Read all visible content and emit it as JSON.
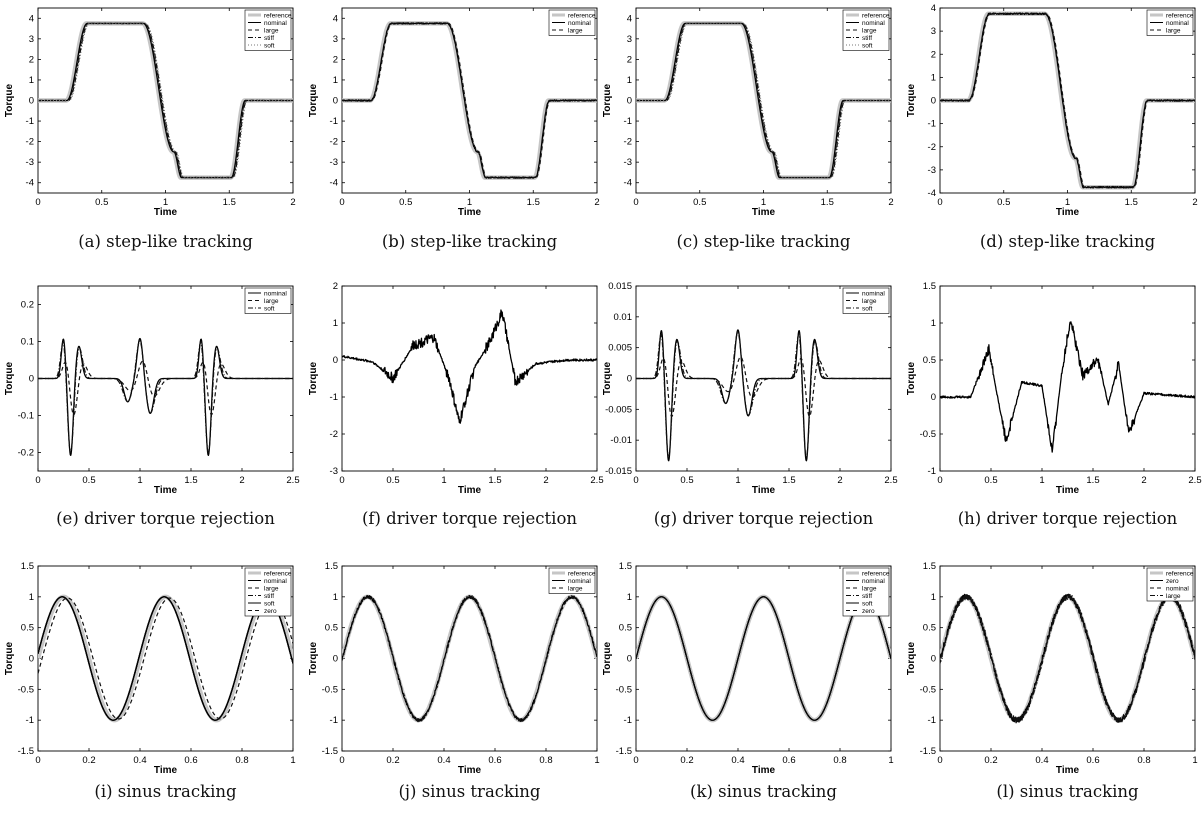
{
  "chart_data": [
    {
      "id": "a",
      "type": "line",
      "caption": "(a) step-like tracking",
      "signal": "step",
      "xlabel": "Time",
      "ylabel": "Torque",
      "xlim": [
        0,
        2
      ],
      "ylim": [
        -4.5,
        4.5
      ],
      "xticks": [
        "0",
        "0.5",
        "1",
        "1.5",
        "2"
      ],
      "yticks": [
        "4",
        "3",
        "2",
        "1",
        "0",
        "-1",
        "-2",
        "-3",
        "-4"
      ],
      "series": [
        {
          "name": "reference",
          "style": "gray"
        },
        {
          "name": "nominal",
          "style": "solid"
        },
        {
          "name": "large",
          "style": "dashed"
        },
        {
          "name": "stiff",
          "style": "dashdot"
        },
        {
          "name": "soft",
          "style": "dotted"
        }
      ],
      "step_profile": {
        "t": [
          0,
          0.22,
          0.38,
          0.82,
          1.06,
          1.12,
          1.51,
          1.62,
          1.7,
          2
        ],
        "y": [
          0,
          0,
          3.75,
          3.75,
          -2.5,
          -3.75,
          -3.75,
          0,
          0,
          0
        ]
      }
    },
    {
      "id": "b",
      "type": "line",
      "caption": "(b) step-like tracking",
      "signal": "step",
      "xlabel": "Time",
      "ylabel": "Torque",
      "xlim": [
        0,
        2
      ],
      "ylim": [
        -4.5,
        4.5
      ],
      "xticks": [
        "0",
        "0.5",
        "1",
        "1.5",
        "2"
      ],
      "yticks": [
        "4",
        "3",
        "2",
        "1",
        "0",
        "-1",
        "-2",
        "-3",
        "-4"
      ],
      "series": [
        {
          "name": "reference",
          "style": "gray"
        },
        {
          "name": "nominal",
          "style": "solid"
        },
        {
          "name": "large",
          "style": "dashed"
        }
      ],
      "step_profile": {
        "t": [
          0,
          0.22,
          0.38,
          0.82,
          1.06,
          1.12,
          1.51,
          1.62,
          1.7,
          2
        ],
        "y": [
          0,
          0,
          3.75,
          3.75,
          -2.5,
          -3.75,
          -3.75,
          0,
          0,
          0
        ]
      }
    },
    {
      "id": "c",
      "type": "line",
      "caption": "(c) step-like tracking",
      "signal": "step",
      "xlabel": "Time",
      "ylabel": "Torque",
      "xlim": [
        0,
        2
      ],
      "ylim": [
        -4.5,
        4.5
      ],
      "xticks": [
        "0",
        "0.5",
        "1",
        "1.5",
        "2"
      ],
      "yticks": [
        "4",
        "3",
        "2",
        "1",
        "0",
        "-1",
        "-2",
        "-3",
        "-4"
      ],
      "series": [
        {
          "name": "reference",
          "style": "gray"
        },
        {
          "name": "nominal",
          "style": "solid"
        },
        {
          "name": "large",
          "style": "dashed"
        },
        {
          "name": "stiff",
          "style": "dashdot"
        },
        {
          "name": "soft",
          "style": "dotted"
        }
      ],
      "step_profile": {
        "t": [
          0,
          0.22,
          0.38,
          0.82,
          1.06,
          1.12,
          1.51,
          1.62,
          1.7,
          2
        ],
        "y": [
          0,
          0,
          3.75,
          3.75,
          -2.5,
          -3.75,
          -3.75,
          0,
          0,
          0
        ]
      }
    },
    {
      "id": "d",
      "type": "line",
      "caption": "(d) step-like tracking",
      "signal": "step",
      "xlabel": "Time",
      "ylabel": "Torque",
      "xlim": [
        0,
        2
      ],
      "ylim": [
        -4,
        4
      ],
      "xticks": [
        "0",
        "0.5",
        "1",
        "1.5",
        "2"
      ],
      "yticks": [
        "4",
        "3",
        "2",
        "1",
        "0",
        "-1",
        "-2",
        "-3",
        "-4"
      ],
      "series": [
        {
          "name": "reference",
          "style": "gray"
        },
        {
          "name": "nominal",
          "style": "solid"
        },
        {
          "name": "large",
          "style": "dashed"
        }
      ],
      "step_profile": {
        "t": [
          0,
          0.22,
          0.38,
          0.82,
          1.06,
          1.12,
          1.51,
          1.62,
          1.7,
          2
        ],
        "y": [
          0,
          0,
          3.75,
          3.75,
          -2.5,
          -3.75,
          -3.75,
          0,
          0,
          0
        ]
      }
    },
    {
      "id": "e",
      "type": "line",
      "caption": "(e) driver torque rejection",
      "signal": "pulses",
      "xlabel": "Time",
      "ylabel": "Torque",
      "xlim": [
        0,
        2.5
      ],
      "ylim": [
        -0.25,
        0.25
      ],
      "xticks": [
        "0",
        "0.5",
        "1",
        "1.5",
        "2",
        "2.5"
      ],
      "yticks": [
        "0.2",
        "0.1",
        "0",
        "-0.1",
        "-0.2"
      ],
      "series": [
        {
          "name": "nominal",
          "style": "solid"
        },
        {
          "name": "large",
          "style": "dashed"
        },
        {
          "name": "soft",
          "style": "dashdot"
        }
      ],
      "peaks": {
        "positive": [
          0.11,
          0.11,
          0.11
        ],
        "negative": [
          -0.21,
          -0.21
        ]
      }
    },
    {
      "id": "f",
      "type": "line",
      "caption": "(f) driver torque rejection",
      "signal": "noise",
      "xlabel": "Time",
      "ylabel": "Torque",
      "xlim": [
        0,
        2.5
      ],
      "ylim": [
        -3,
        2
      ],
      "xticks": [
        "0",
        "0.5",
        "1",
        "1.5",
        "2",
        "2.5"
      ],
      "yticks": [
        "2",
        "1",
        "0",
        "-1",
        "-2",
        "-3"
      ],
      "series": [
        {
          "name": "",
          "style": "solid"
        }
      ],
      "envelope": {
        "t": [
          0,
          0.3,
          0.5,
          0.7,
          0.9,
          1.05,
          1.15,
          1.3,
          1.45,
          1.57,
          1.7,
          1.9,
          2.2,
          2.5
        ],
        "y": [
          0.1,
          -0.05,
          -0.5,
          0.4,
          0.6,
          -0.5,
          -1.7,
          -0.2,
          0.5,
          1.3,
          -0.6,
          -0.1,
          0,
          0
        ]
      }
    },
    {
      "id": "g",
      "type": "line",
      "caption": "(g) driver torque rejection",
      "signal": "pulses",
      "xlabel": "Time",
      "ylabel": "Torque",
      "xlim": [
        0,
        2.5
      ],
      "ylim": [
        -0.015,
        0.015
      ],
      "xticks": [
        "0",
        "0.5",
        "1",
        "1.5",
        "2",
        "2.5"
      ],
      "yticks": [
        "0.015",
        "0.01",
        "0.005",
        "0",
        "-0.005",
        "-0.01",
        "-0.015"
      ],
      "series": [
        {
          "name": "nominal",
          "style": "solid"
        },
        {
          "name": "large",
          "style": "dashed"
        },
        {
          "name": "soft",
          "style": "dashdot"
        }
      ],
      "peaks": {
        "positive": [
          0.008,
          0.0075,
          0.008
        ],
        "negative": [
          -0.0135,
          -0.0135
        ]
      }
    },
    {
      "id": "h",
      "type": "line",
      "caption": "(h) driver torque rejection",
      "signal": "noise",
      "xlabel": "Time",
      "ylabel": "Torque",
      "xlim": [
        0,
        2.5
      ],
      "ylim": [
        -1,
        1.5
      ],
      "xticks": [
        "0",
        "0.5",
        "1",
        "1.5",
        "2",
        "2.5"
      ],
      "yticks": [
        "1.5",
        "1",
        "0.5",
        "0",
        "-0.5",
        "-1"
      ],
      "series": [
        {
          "name": "",
          "style": "solid"
        }
      ],
      "envelope": {
        "t": [
          0,
          0.3,
          0.48,
          0.55,
          0.65,
          0.8,
          1.0,
          1.1,
          1.2,
          1.28,
          1.4,
          1.55,
          1.65,
          1.75,
          1.85,
          2.0,
          2.5
        ],
        "y": [
          0,
          0,
          0.65,
          0.1,
          -0.6,
          0.2,
          0.15,
          -0.75,
          0.4,
          1.05,
          0.3,
          0.5,
          -0.1,
          0.45,
          -0.5,
          0.05,
          0
        ]
      }
    },
    {
      "id": "i",
      "type": "line",
      "caption": "(i) sinus tracking",
      "signal": "sine",
      "xlabel": "Time",
      "ylabel": "Torque",
      "xlim": [
        0,
        1
      ],
      "ylim": [
        -1.5,
        1.5
      ],
      "xticks": [
        "0",
        "0.2",
        "0.4",
        "0.6",
        "0.8",
        "1"
      ],
      "yticks": [
        "1.5",
        "1",
        "0.5",
        "0",
        "-0.5",
        "-1",
        "-1.5"
      ],
      "series": [
        {
          "name": "reference",
          "style": "gray"
        },
        {
          "name": "nominal",
          "style": "solid"
        },
        {
          "name": "large",
          "style": "dashed"
        },
        {
          "name": "stiff",
          "style": "dashdot"
        },
        {
          "name": "soft",
          "style": "solid"
        },
        {
          "name": "zero",
          "style": "dashed"
        }
      ],
      "amplitude": 1,
      "frequency_hz": 2.5
    },
    {
      "id": "j",
      "type": "line",
      "caption": "(j) sinus tracking",
      "signal": "sine",
      "xlabel": "Time",
      "ylabel": "Torque",
      "xlim": [
        0,
        1
      ],
      "ylim": [
        -1.5,
        1.5
      ],
      "xticks": [
        "0",
        "0.2",
        "0.4",
        "0.6",
        "0.8",
        "1"
      ],
      "yticks": [
        "1.5",
        "1",
        "0.5",
        "0",
        "-0.5",
        "-1",
        "-1.5"
      ],
      "series": [
        {
          "name": "reference",
          "style": "gray"
        },
        {
          "name": "nominal",
          "style": "solid"
        },
        {
          "name": "large",
          "style": "dashed"
        }
      ],
      "amplitude": 1,
      "frequency_hz": 2.5
    },
    {
      "id": "k",
      "type": "line",
      "caption": "(k) sinus tracking",
      "signal": "sine",
      "xlabel": "Time",
      "ylabel": "Torque",
      "xlim": [
        0,
        1
      ],
      "ylim": [
        -1.5,
        1.5
      ],
      "xticks": [
        "0",
        "0.2",
        "0.4",
        "0.6",
        "0.8",
        "1"
      ],
      "yticks": [
        "1.5",
        "1",
        "0.5",
        "0",
        "-0.5",
        "-1",
        "-1.5"
      ],
      "series": [
        {
          "name": "reference",
          "style": "gray"
        },
        {
          "name": "nominal",
          "style": "solid"
        },
        {
          "name": "large",
          "style": "dashed"
        },
        {
          "name": "stiff",
          "style": "dashdot"
        },
        {
          "name": "soft",
          "style": "solid"
        },
        {
          "name": "zero",
          "style": "dashed"
        }
      ],
      "amplitude": 1,
      "frequency_hz": 2.5
    },
    {
      "id": "l",
      "type": "line",
      "caption": "(l) sinus tracking",
      "signal": "sine",
      "xlabel": "Time",
      "ylabel": "Torque",
      "xlim": [
        0,
        1
      ],
      "ylim": [
        -1.5,
        1.5
      ],
      "xticks": [
        "0",
        "0.2",
        "0.4",
        "0.6",
        "0.8",
        "1"
      ],
      "yticks": [
        "1.5",
        "1",
        "0.5",
        "0",
        "-0.5",
        "-1",
        "-1.5"
      ],
      "series": [
        {
          "name": "reference",
          "style": "gray"
        },
        {
          "name": "zero",
          "style": "solid"
        },
        {
          "name": "nominal",
          "style": "dashed"
        },
        {
          "name": "large",
          "style": "dashdot"
        }
      ],
      "amplitude": 1,
      "frequency_hz": 2.5
    }
  ]
}
